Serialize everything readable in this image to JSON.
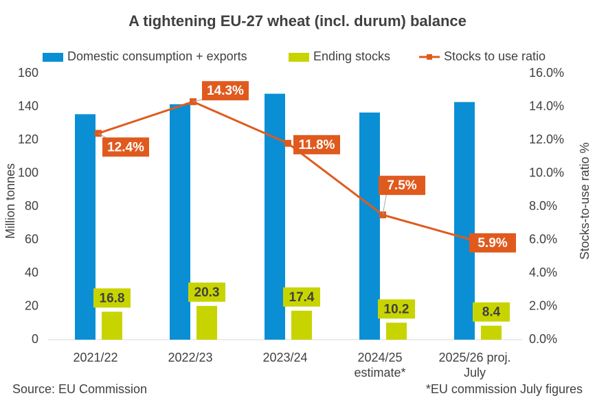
{
  "chart_data": {
    "type": "bar-line",
    "title": "A tightening EU-27 wheat (incl. durum) balance",
    "categories": [
      "2021/22",
      "2022/23",
      "2023/24",
      "2024/25\nestimate*",
      "2025/26 proj.\nJuly"
    ],
    "series": [
      {
        "name": "Domestic consumption + exports",
        "color": "#0b8fd4",
        "type": "bar",
        "values": [
          135.5,
          141.5,
          147.8,
          136.5,
          142.8
        ]
      },
      {
        "name": "Ending stocks",
        "color": "#c8d400",
        "type": "bar",
        "values": [
          16.8,
          20.3,
          17.4,
          10.2,
          8.4
        ],
        "show_labels": true
      },
      {
        "name": "Stocks to use ratio",
        "color": "#e05a1e",
        "type": "line",
        "axis": "y2",
        "values": [
          12.4,
          14.3,
          11.8,
          7.5,
          5.9
        ],
        "value_labels": [
          "12.4%",
          "14.3%",
          "11.8%",
          "7.5%",
          "5.9%"
        ]
      }
    ],
    "ylabel": "Million tonnes",
    "y2label": "Stocks-to-use ratio %",
    "ylim": [
      0,
      160
    ],
    "yticks": [
      0,
      20,
      40,
      60,
      80,
      100,
      120,
      140,
      160
    ],
    "y2lim": [
      0,
      16
    ],
    "y2ticks": [
      {
        "value": 0,
        "label": "0.0%"
      },
      {
        "value": 2,
        "label": "2.0%"
      },
      {
        "value": 4,
        "label": "4.0%"
      },
      {
        "value": 6,
        "label": "6.0%"
      },
      {
        "value": 8,
        "label": "8.0%"
      },
      {
        "value": 10,
        "label": "10.0%"
      },
      {
        "value": 12,
        "label": "12.0%"
      },
      {
        "value": 14,
        "label": "14.0%"
      },
      {
        "value": 16,
        "label": "16.0%"
      }
    ],
    "legend": "top",
    "source": "Source: EU Commission",
    "footnote": "*EU commission July figures"
  }
}
